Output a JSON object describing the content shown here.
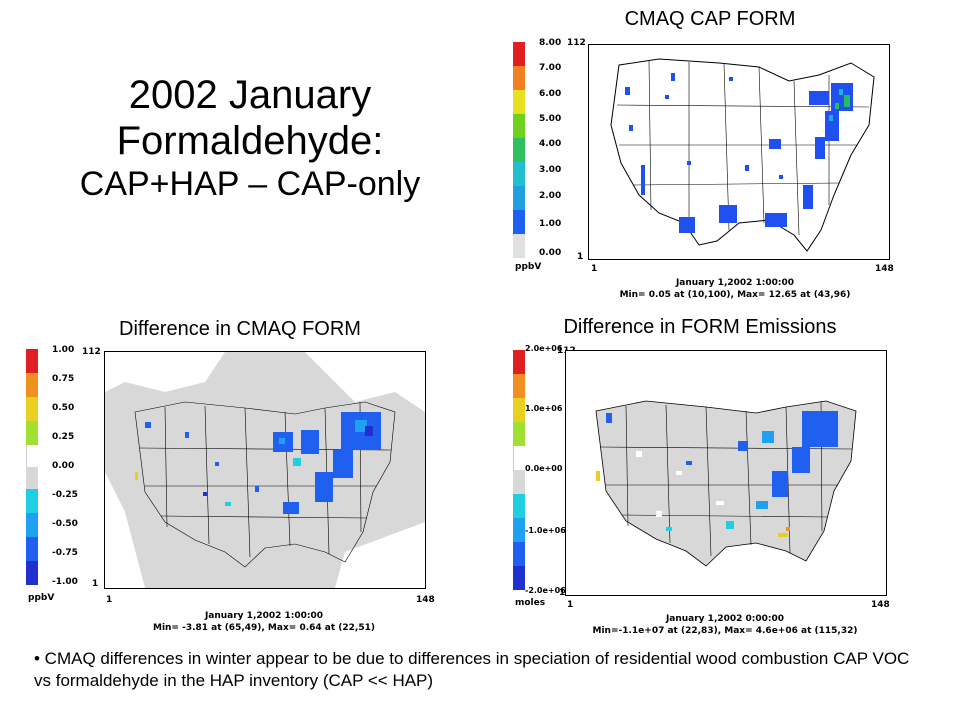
{
  "slide": {
    "title_line1": "2002 January",
    "title_line2": "Formaldehyde:",
    "title_line3": "CAP+HAP – CAP-only",
    "bullet": "• CMAQ differences in winter appear to be due to differences in speciation of residential wood combustion CAP VOC vs formaldehyde in the HAP inventory (CAP << HAP)"
  },
  "panels": {
    "cap_form": {
      "title": "CMAQ CAP FORM",
      "ticks": [
        "8.00",
        "7.00",
        "6.00",
        "5.00",
        "4.00",
        "3.00",
        "2.00",
        "1.00",
        "0.00"
      ],
      "unit": "ppbV",
      "y_top": "112",
      "y_bottom": "1",
      "x_left": "1",
      "x_right": "148",
      "date": "January 1,2002 1:00:00",
      "minmax": "Min=    0.05 at (10,100), Max=    12.65 at (43,96)",
      "colors": [
        "#e02020",
        "#f08020",
        "#e8e020",
        "#70d020",
        "#30c060",
        "#20c0d0",
        "#20a0e0",
        "#2060f0",
        "#e0e0e0"
      ]
    },
    "diff_cmaq": {
      "title": "Difference in CMAQ FORM",
      "ticks": [
        "1.00",
        "0.75",
        "0.50",
        "0.25",
        "0.00",
        "-0.25",
        "-0.50",
        "-0.75",
        "-1.00"
      ],
      "unit": "ppbV",
      "y_top": "112",
      "y_bottom": "1",
      "x_left": "1",
      "x_right": "148",
      "date": "January 1,2002 1:00:00",
      "minmax": "Min=    -3.81 at (65,49), Max=    0.64 at (22,51)",
      "colors": [
        "#e02020",
        "#f09020",
        "#e8d020",
        "#a0e030",
        "#ffffff",
        "#d8d8d8",
        "#20d0e0",
        "#20a0f0",
        "#2060f0",
        "#2030d0"
      ]
    },
    "diff_emis": {
      "title": "Difference in FORM Emissions",
      "ticks": [
        "2.0e+06",
        "1.0e+06",
        "0.0e+00",
        "-1.0e+06",
        "-2.0e+06"
      ],
      "unit": "moles",
      "y_top": "112",
      "y_bottom": "1",
      "x_left": "1",
      "x_right": "148",
      "date": "January 1,2002 0:00:00",
      "minmax": "Min=-1.1e+07 at (22,83), Max= 4.6e+06 at (115,32)",
      "colors": [
        "#e02020",
        "#f09020",
        "#e8d020",
        "#a0e030",
        "#ffffff",
        "#d8d8d8",
        "#20d0e0",
        "#20a0f0",
        "#2060f0",
        "#2030d0"
      ]
    }
  }
}
